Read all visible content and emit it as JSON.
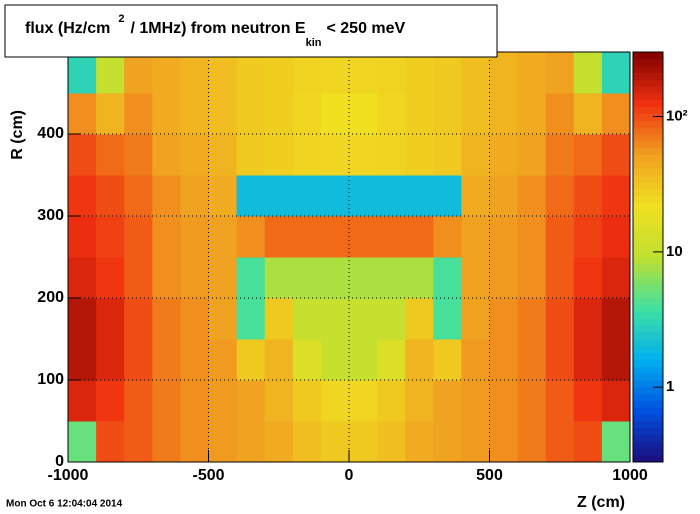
{
  "chart_data": {
    "type": "heatmap",
    "title": [
      "flux (Hz/cm",
      "2",
      "/ 1MHz) from   neutron  E",
      "kin",
      "< 250 meV"
    ],
    "xlabel": "Z (cm)",
    "ylabel": "R (cm)",
    "timestamp": "Mon Oct  6 12:04:04 2014",
    "x_bins": [
      -1000,
      -900,
      -800,
      -700,
      -600,
      -500,
      -400,
      -300,
      -200,
      -100,
      0,
      100,
      200,
      300,
      400,
      500,
      600,
      700,
      800,
      900,
      1000
    ],
    "y_bins": [
      0,
      50,
      100,
      150,
      200,
      250,
      300,
      350,
      400,
      450,
      500
    ],
    "z": [
      [
        5,
        100,
        90,
        70,
        60,
        55,
        50,
        45,
        35,
        30,
        30,
        35,
        45,
        50,
        55,
        60,
        70,
        90,
        100,
        5
      ],
      [
        150,
        120,
        90,
        70,
        60,
        55,
        50,
        40,
        30,
        25,
        25,
        30,
        40,
        50,
        55,
        60,
        70,
        90,
        120,
        150
      ],
      [
        200,
        150,
        100,
        70,
        60,
        55,
        30,
        40,
        15,
        10,
        10,
        15,
        40,
        30,
        55,
        60,
        70,
        100,
        150,
        200
      ],
      [
        200,
        150,
        100,
        70,
        60,
        50,
        4,
        30,
        10,
        10,
        10,
        10,
        30,
        4,
        50,
        60,
        70,
        100,
        150,
        200
      ],
      [
        150,
        120,
        90,
        60,
        55,
        50,
        4,
        8,
        8,
        8,
        8,
        8,
        8,
        4,
        50,
        55,
        60,
        90,
        120,
        150
      ],
      [
        130,
        110,
        90,
        60,
        55,
        50,
        60,
        80,
        80,
        80,
        80,
        80,
        80,
        60,
        50,
        55,
        60,
        90,
        110,
        130
      ],
      [
        120,
        100,
        80,
        60,
        50,
        45,
        2,
        2,
        2,
        2,
        2,
        2,
        2,
        2,
        45,
        50,
        60,
        80,
        100,
        120
      ],
      [
        100,
        80,
        70,
        50,
        45,
        40,
        30,
        28,
        26,
        25,
        25,
        26,
        28,
        30,
        40,
        45,
        50,
        70,
        80,
        100
      ],
      [
        60,
        40,
        60,
        45,
        40,
        35,
        30,
        28,
        25,
        22,
        22,
        25,
        28,
        30,
        35,
        40,
        45,
        60,
        40,
        60
      ],
      [
        3,
        10,
        50,
        45,
        40,
        35,
        30,
        28,
        26,
        25,
        25,
        26,
        28,
        30,
        35,
        40,
        45,
        50,
        10,
        3
      ]
    ],
    "xlim": [
      -1000,
      1000
    ],
    "ylim": [
      0,
      500
    ],
    "zlim": [
      0.28,
      300
    ],
    "zlog": true,
    "xticks": [
      -1000,
      -500,
      0,
      500,
      1000
    ],
    "yticks": [
      0,
      100,
      200,
      300,
      400,
      500
    ],
    "zticks": [
      1,
      10,
      {
        "value": 100,
        "label": "10²"
      }
    ],
    "grid": true,
    "palette": [
      "#1c0c7c",
      "#0050e0",
      "#00b0f0",
      "#40e0a0",
      "#c0e030",
      "#f0e020",
      "#f0a020",
      "#f03010",
      "#800000"
    ]
  }
}
